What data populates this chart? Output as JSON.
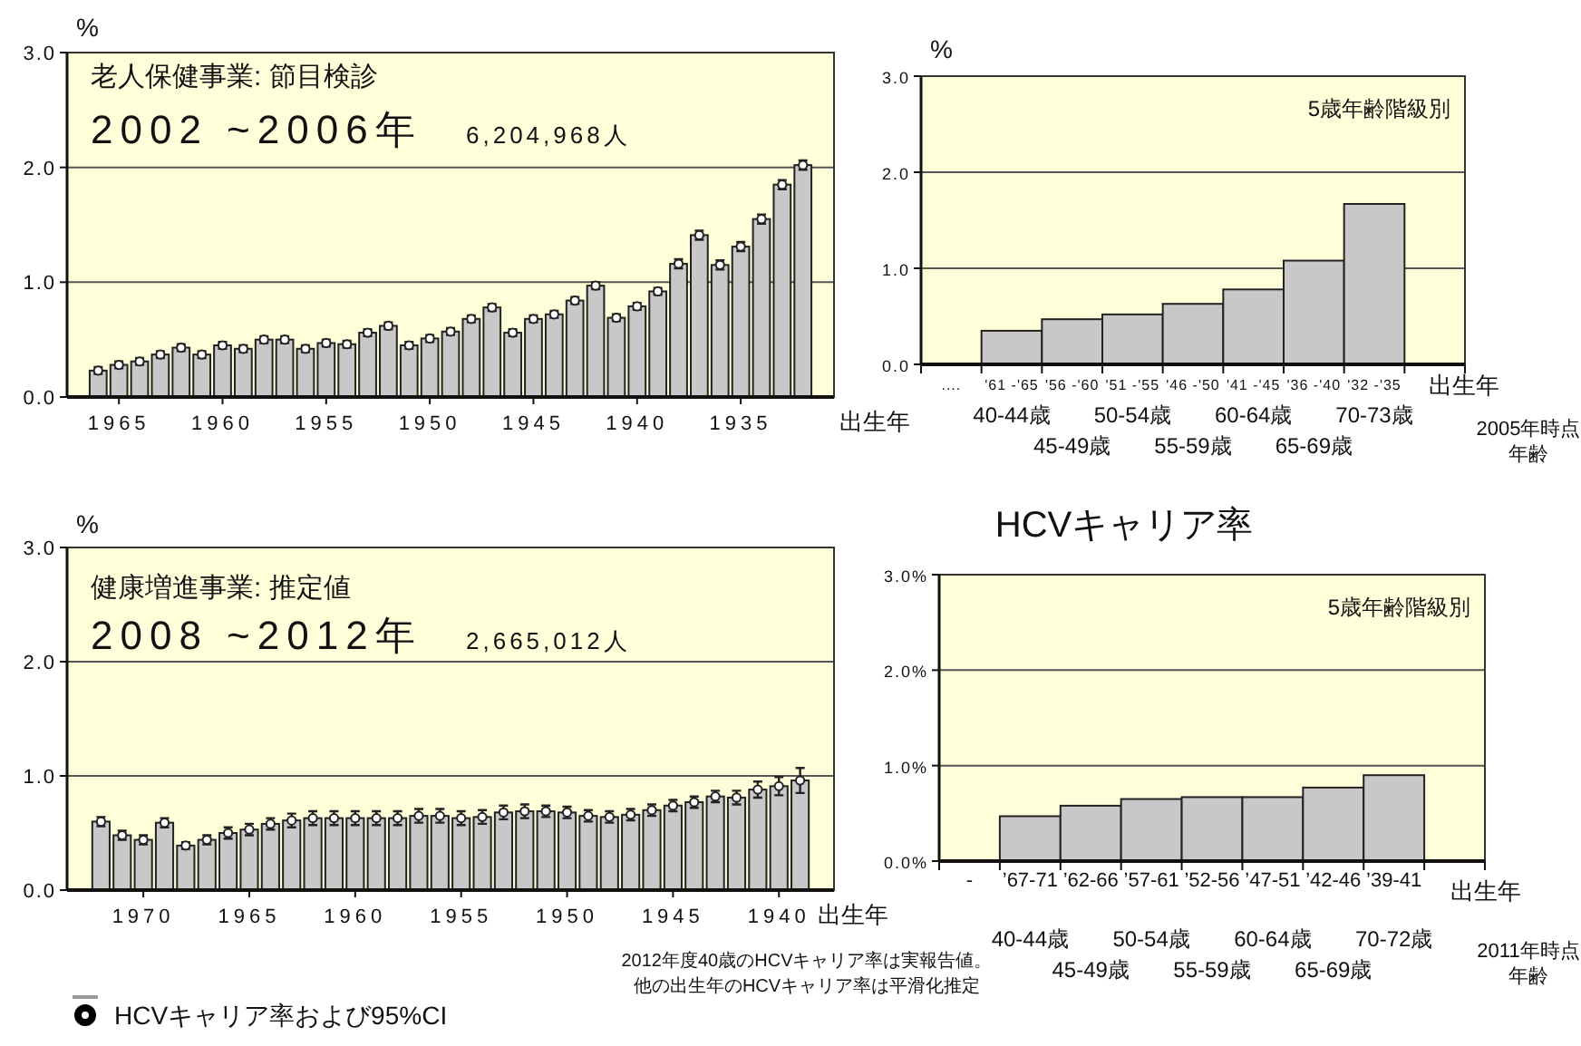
{
  "chart_data": [
    {
      "type": "bar",
      "title": "老人保健事業: 節目検診",
      "subtitle": "2002 ~2006年",
      "annotations": [
        "6,204,968人"
      ],
      "ylabel": "%",
      "xlabel": "出生年",
      "x": [
        1966,
        1965,
        1964,
        1963,
        1962,
        1961,
        1960,
        1959,
        1958,
        1957,
        1956,
        1955,
        1954,
        1953,
        1952,
        1951,
        1950,
        1949,
        1948,
        1947,
        1946,
        1945,
        1944,
        1943,
        1942,
        1941,
        1940,
        1939,
        1938,
        1937,
        1936,
        1935,
        1934,
        1933,
        1932
      ],
      "series": [
        {
          "color": "#c8c8c8",
          "values": [
            0.23,
            0.28,
            0.31,
            0.37,
            0.43,
            0.37,
            0.45,
            0.42,
            0.5,
            0.5,
            0.42,
            0.47,
            0.46,
            0.56,
            0.62,
            0.45,
            0.51,
            0.57,
            0.68,
            0.78,
            0.56,
            0.68,
            0.72,
            0.84,
            0.97,
            0.69,
            0.79,
            0.92,
            1.16,
            1.41,
            1.15,
            1.31,
            1.55,
            1.85,
            2.02
          ]
        },
        {
          "type": "scatter",
          "color": "#ffffff",
          "values": [
            0.23,
            0.28,
            0.31,
            0.37,
            0.43,
            0.37,
            0.45,
            0.42,
            0.5,
            0.5,
            0.42,
            0.47,
            0.46,
            0.56,
            0.62,
            0.45,
            0.51,
            0.57,
            0.68,
            0.78,
            0.56,
            0.68,
            0.72,
            0.84,
            0.97,
            0.69,
            0.79,
            0.92,
            1.16,
            1.41,
            1.15,
            1.31,
            1.55,
            1.85,
            2.02
          ],
          "errors": [
            0.03,
            0.03,
            0.03,
            0.03,
            0.03,
            0.03,
            0.03,
            0.03,
            0.03,
            0.03,
            0.03,
            0.03,
            0.03,
            0.03,
            0.03,
            0.03,
            0.03,
            0.03,
            0.03,
            0.03,
            0.03,
            0.03,
            0.03,
            0.03,
            0.03,
            0.03,
            0.03,
            0.03,
            0.04,
            0.04,
            0.04,
            0.04,
            0.04,
            0.04,
            0.04
          ]
        }
      ],
      "marker": "circle",
      "xlim": [
        1967.5,
        1930.5
      ],
      "xticks": [
        1965,
        1960,
        1955,
        1950,
        1945,
        1940,
        1935
      ],
      "ylim": [
        0,
        3
      ],
      "yticks": [
        {
          "value": 0,
          "label": "0.0"
        },
        {
          "value": 1,
          "label": "1.0"
        },
        {
          "value": 2,
          "label": "2.0"
        },
        {
          "value": 3,
          "label": "3.0"
        }
      ],
      "grid": "y"
    },
    {
      "type": "bar",
      "title": "健康増進事業: 推定値",
      "subtitle": "2008 ~2012年",
      "annotations": [
        "2,665,012人",
        "2012年度40歳のHCVキャリア率は実報告値。",
        "他の出生年のHCVキャリア率は平滑化推定"
      ],
      "ylabel": "%",
      "xlabel": "出生年",
      "x": [
        1972,
        1971,
        1970,
        1969,
        1968,
        1967,
        1966,
        1965,
        1964,
        1963,
        1962,
        1961,
        1960,
        1959,
        1958,
        1957,
        1956,
        1955,
        1954,
        1953,
        1952,
        1951,
        1950,
        1949,
        1948,
        1947,
        1946,
        1945,
        1944,
        1943,
        1942,
        1941,
        1940,
        1939
      ],
      "series": [
        {
          "color": "#c8c8c8",
          "values": [
            0.6,
            0.48,
            0.44,
            0.59,
            0.39,
            0.44,
            0.5,
            0.53,
            0.58,
            0.61,
            0.63,
            0.63,
            0.63,
            0.63,
            0.63,
            0.65,
            0.65,
            0.63,
            0.64,
            0.68,
            0.69,
            0.69,
            0.68,
            0.65,
            0.64,
            0.66,
            0.7,
            0.74,
            0.77,
            0.82,
            0.81,
            0.88,
            0.91,
            0.96
          ]
        },
        {
          "type": "scatter",
          "name": "HCVキャリア率および95%CI",
          "color": "#ffffff",
          "values": [
            0.6,
            0.48,
            0.44,
            0.59,
            0.39,
            0.44,
            0.5,
            0.53,
            0.58,
            0.61,
            0.63,
            0.63,
            0.63,
            0.63,
            0.63,
            0.65,
            0.65,
            0.63,
            0.64,
            0.68,
            0.69,
            0.69,
            0.68,
            0.65,
            0.64,
            0.66,
            0.7,
            0.74,
            0.77,
            0.82,
            0.81,
            0.88,
            0.91,
            0.96
          ],
          "errors": [
            0.04,
            0.04,
            0.04,
            0.04,
            0.03,
            0.04,
            0.05,
            0.05,
            0.05,
            0.06,
            0.06,
            0.06,
            0.06,
            0.06,
            0.06,
            0.06,
            0.06,
            0.06,
            0.06,
            0.06,
            0.06,
            0.05,
            0.05,
            0.05,
            0.05,
            0.05,
            0.05,
            0.05,
            0.05,
            0.05,
            0.06,
            0.07,
            0.08,
            0.11
          ]
        }
      ],
      "marker": "circle",
      "legend": "bottom",
      "xlim": [
        1973.6,
        1937.4
      ],
      "xticks": [
        1970,
        1965,
        1960,
        1955,
        1950,
        1945,
        1940
      ],
      "ylim": [
        0,
        3
      ],
      "yticks": [
        {
          "value": 0,
          "label": "0.0"
        },
        {
          "value": 1,
          "label": "1.0"
        },
        {
          "value": 2,
          "label": "2.0"
        },
        {
          "value": 3,
          "label": "3.0"
        }
      ],
      "grid": "y"
    },
    {
      "type": "bar",
      "ylabel": "%",
      "xlabel": "出生年",
      "categories": [
        "....",
        "'61 -'65",
        "'56 -'60",
        "'51 -'55",
        "'46 -'50",
        "'41 -'45",
        "'36 -'40",
        "'32 -'35",
        null
      ],
      "series": [
        {
          "color": "#c8c8c8",
          "values": [
            null,
            0.35,
            0.47,
            0.52,
            0.63,
            0.78,
            1.08,
            1.67,
            null
          ]
        }
      ],
      "annotations": [
        "5歳年齢階級別",
        "40-44歳",
        "45-49歳",
        "50-54歳",
        "55-59歳",
        "60-64歳",
        "65-69歳",
        "70-73歳",
        "2005年時点",
        "年齢"
      ],
      "ylim": [
        0,
        3
      ],
      "yticks": [
        {
          "value": 0,
          "label": "0.0"
        },
        {
          "value": 1,
          "label": "1.0"
        },
        {
          "value": 2,
          "label": "2.0"
        },
        {
          "value": 3,
          "label": "3.0"
        }
      ],
      "grid": "y"
    },
    {
      "type": "bar",
      "title": "HCVキャリア率",
      "xlabel": "出生年",
      "categories": [
        "-",
        "’67-71",
        "’62-66",
        "’57-61",
        "’52-56",
        "’47-51",
        "’42-46",
        "’39-41",
        null
      ],
      "series": [
        {
          "color": "#c8c8c8",
          "values": [
            null,
            0.47,
            0.58,
            0.65,
            0.67,
            0.67,
            0.77,
            0.9,
            null
          ]
        }
      ],
      "annotations": [
        "5歳年齢階級別",
        "40-44歳",
        "45-49歳",
        "50-54歳",
        "55-59歳",
        "60-64歳",
        "65-69歳",
        "70-72歳",
        "2011年時点",
        "年齢"
      ],
      "ylim": [
        0,
        3
      ],
      "yticks": [
        {
          "value": 0,
          "label": "0.0%"
        },
        {
          "value": 1,
          "label": "1.0%"
        },
        {
          "value": 2,
          "label": "2.0%"
        },
        {
          "value": 3,
          "label": "3.0%"
        }
      ],
      "grid": "y"
    }
  ]
}
